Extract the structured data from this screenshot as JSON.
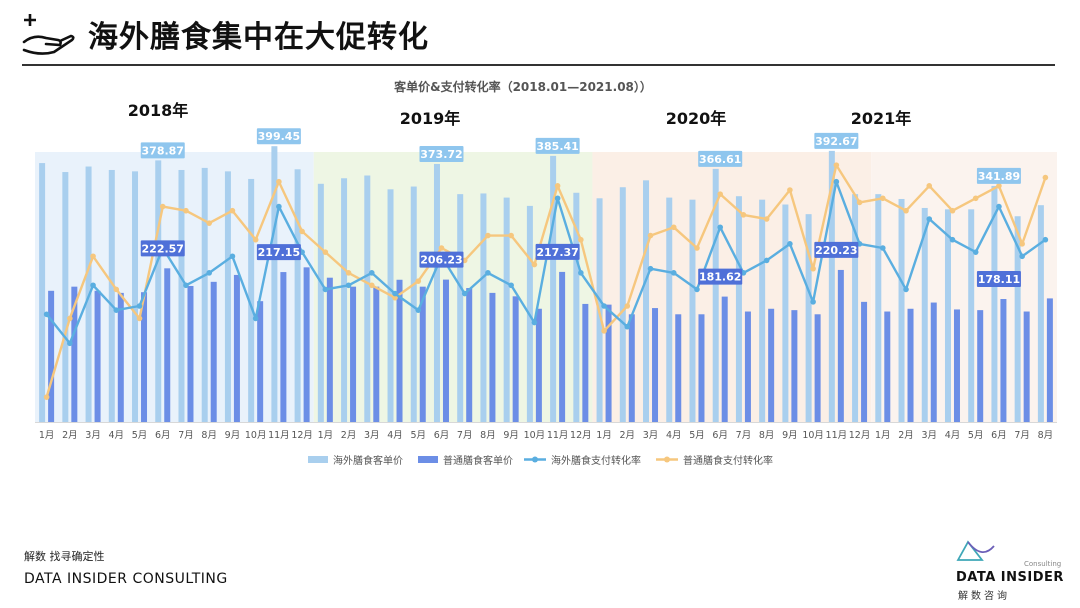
{
  "header": {
    "title": "海外膳食集中在大促转化",
    "icon": "hand-plus-icon"
  },
  "footer": {
    "tagline": "解数 找寻确定性",
    "company": "DATA INSIDER CONSULTING"
  },
  "logo": {
    "name": "DATA INSIDER",
    "sub": "Consulting",
    "cn": "解数咨询"
  },
  "colors": {
    "band2018": "#e9f2fb",
    "band2019": "#eef6e4",
    "band2020": "#fbefe6",
    "band2021": "#fbf3ee",
    "lightBar": "#a9cfee",
    "darkBar": "#6c8ee6",
    "blueLine": "#5aaee0",
    "orangeLine": "#f6c77e",
    "lightLabel": "#8fc6ee",
    "darkLabel": "#4f70d8"
  },
  "chart_data": {
    "type": "bar+line",
    "title": "客单价&支付转化率（2018.01—2021.08））",
    "year_labels": [
      "2018年",
      "2019年",
      "2020年",
      "2021年"
    ],
    "categories": [
      "1月",
      "2月",
      "3月",
      "4月",
      "5月",
      "6月",
      "7月",
      "8月",
      "9月",
      "10月",
      "11月",
      "12月",
      "1月",
      "2月",
      "3月",
      "4月",
      "5月",
      "6月",
      "7月",
      "8月",
      "9月",
      "10月",
      "11月",
      "12月",
      "1月",
      "2月",
      "3月",
      "4月",
      "5月",
      "6月",
      "7月",
      "8月",
      "9月",
      "10月",
      "11月",
      "12月",
      "1月",
      "2月",
      "3月",
      "4月",
      "5月",
      "6月",
      "7月",
      "8月"
    ],
    "ylim": [
      0,
      420
    ],
    "series": [
      {
        "name": "海外膳食客单价",
        "type": "bar",
        "values": [
          375,
          362,
          370,
          365,
          363,
          378.87,
          365,
          368,
          363,
          352,
          399.45,
          366,
          345,
          353,
          357,
          337,
          341,
          373.72,
          330,
          331,
          325,
          313,
          385.41,
          332,
          324,
          340,
          350,
          325,
          322,
          366.61,
          327,
          322,
          315,
          301,
          392.67,
          330,
          330,
          323,
          310,
          308,
          308,
          341.89,
          298,
          314
        ]
      },
      {
        "name": "普通膳食客单价",
        "type": "bar",
        "values": [
          190,
          196,
          190,
          187,
          188,
          222.57,
          197,
          203,
          213,
          175,
          217.15,
          224,
          209,
          196,
          196,
          206,
          196,
          206.23,
          194,
          187,
          182,
          164,
          217.37,
          171,
          170,
          156,
          165,
          156,
          156,
          181.62,
          160,
          164,
          162,
          156,
          220.23,
          174,
          160,
          164,
          173,
          163,
          162,
          178.11,
          160,
          179
        ]
      },
      {
        "name": "海外膳食支付转化率",
        "type": "line",
        "values": [
          0.56,
          0.49,
          0.63,
          0.57,
          0.58,
          0.72,
          0.63,
          0.66,
          0.7,
          0.55,
          0.82,
          0.71,
          0.62,
          0.63,
          0.66,
          0.61,
          0.57,
          0.7,
          0.61,
          0.66,
          0.63,
          0.54,
          0.84,
          0.66,
          0.58,
          0.53,
          0.67,
          0.66,
          0.62,
          0.77,
          0.66,
          0.69,
          0.73,
          0.59,
          0.88,
          0.73,
          0.72,
          0.62,
          0.79,
          0.74,
          0.71,
          0.82,
          0.7,
          0.74
        ]
      },
      {
        "name": "普通膳食支付转化率",
        "type": "line",
        "values": [
          0.36,
          0.55,
          0.7,
          0.62,
          0.55,
          0.82,
          0.81,
          0.78,
          0.81,
          0.74,
          0.88,
          0.76,
          0.71,
          0.66,
          0.63,
          0.6,
          0.64,
          0.72,
          0.69,
          0.75,
          0.75,
          0.68,
          0.87,
          0.74,
          0.52,
          0.58,
          0.75,
          0.77,
          0.72,
          0.85,
          0.8,
          0.79,
          0.86,
          0.67,
          0.92,
          0.83,
          0.84,
          0.81,
          0.87,
          0.81,
          0.84,
          0.87,
          0.73,
          0.89
        ]
      }
    ],
    "data_labels": [
      {
        "series": 0,
        "index": 5,
        "text": "378.87"
      },
      {
        "series": 0,
        "index": 10,
        "text": "399.45"
      },
      {
        "series": 0,
        "index": 17,
        "text": "373.72"
      },
      {
        "series": 0,
        "index": 22,
        "text": "385.41"
      },
      {
        "series": 0,
        "index": 29,
        "text": "366.61"
      },
      {
        "series": 0,
        "index": 34,
        "text": "392.67"
      },
      {
        "series": 0,
        "index": 41,
        "text": "341.89"
      },
      {
        "series": 1,
        "index": 5,
        "text": "222.57"
      },
      {
        "series": 1,
        "index": 10,
        "text": "217.15"
      },
      {
        "series": 1,
        "index": 17,
        "text": "206.23"
      },
      {
        "series": 1,
        "index": 22,
        "text": "217.37"
      },
      {
        "series": 1,
        "index": 29,
        "text": "181.62"
      },
      {
        "series": 1,
        "index": 34,
        "text": "220.23"
      },
      {
        "series": 1,
        "index": 41,
        "text": "178.11"
      }
    ],
    "legend_position": "bottom",
    "grid": false
  }
}
